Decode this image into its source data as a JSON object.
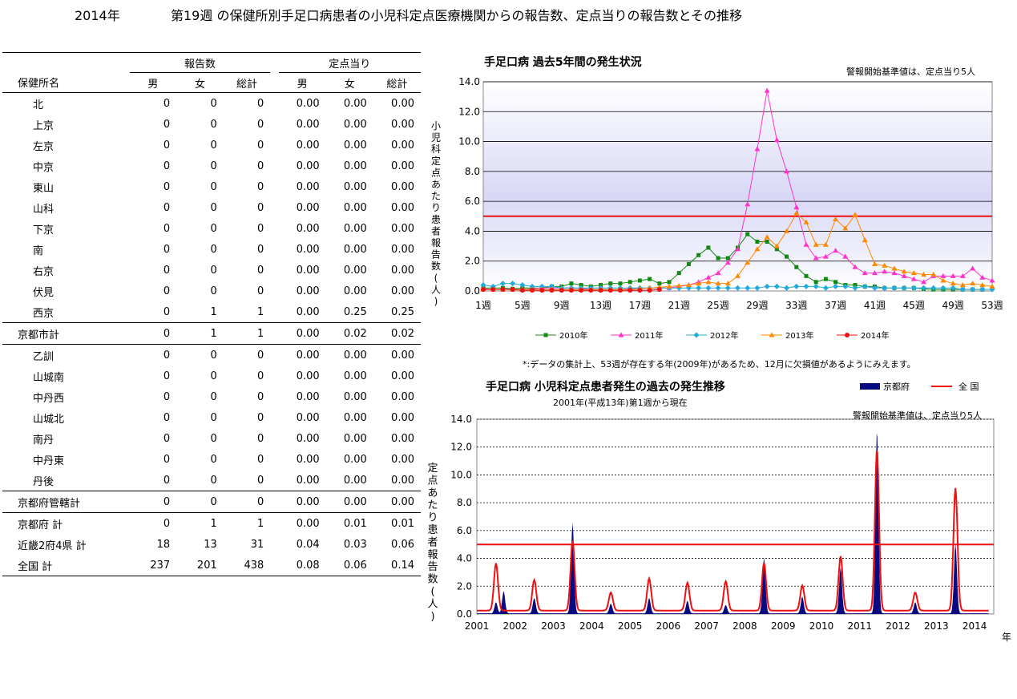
{
  "page": {
    "year": "2014年",
    "title": "第19週 の保健所別手足口病患者の小児科定点医療機関からの報告数、定点当りの報告数とその推移"
  },
  "table": {
    "group_reports": "報告数",
    "group_per_sentinel": "定点当り",
    "col_name": "保健所名",
    "cols": [
      "男",
      "女",
      "総計",
      "男",
      "女",
      "総計"
    ],
    "rows": [
      {
        "name": "北",
        "level": 1,
        "vals": [
          "0",
          "0",
          "0",
          "0.00",
          "0.00",
          "0.00"
        ]
      },
      {
        "name": "上京",
        "level": 1,
        "vals": [
          "0",
          "0",
          "0",
          "0.00",
          "0.00",
          "0.00"
        ]
      },
      {
        "name": "左京",
        "level": 1,
        "vals": [
          "0",
          "0",
          "0",
          "0.00",
          "0.00",
          "0.00"
        ]
      },
      {
        "name": "中京",
        "level": 1,
        "vals": [
          "0",
          "0",
          "0",
          "0.00",
          "0.00",
          "0.00"
        ]
      },
      {
        "name": "東山",
        "level": 1,
        "vals": [
          "0",
          "0",
          "0",
          "0.00",
          "0.00",
          "0.00"
        ]
      },
      {
        "name": "山科",
        "level": 1,
        "vals": [
          "0",
          "0",
          "0",
          "0.00",
          "0.00",
          "0.00"
        ]
      },
      {
        "name": "下京",
        "level": 1,
        "vals": [
          "0",
          "0",
          "0",
          "0.00",
          "0.00",
          "0.00"
        ]
      },
      {
        "name": "南",
        "level": 1,
        "vals": [
          "0",
          "0",
          "0",
          "0.00",
          "0.00",
          "0.00"
        ]
      },
      {
        "name": "右京",
        "level": 1,
        "vals": [
          "0",
          "0",
          "0",
          "0.00",
          "0.00",
          "0.00"
        ]
      },
      {
        "name": "伏見",
        "level": 1,
        "vals": [
          "0",
          "0",
          "0",
          "0.00",
          "0.00",
          "0.00"
        ]
      },
      {
        "name": "西京",
        "level": 1,
        "vals": [
          "0",
          "1",
          "1",
          "0.00",
          "0.25",
          "0.25"
        ]
      },
      {
        "name": "京都市計",
        "level": 0,
        "vals": [
          "0",
          "1",
          "1",
          "0.00",
          "0.02",
          "0.02"
        ]
      },
      {
        "name": "乙訓",
        "level": 1,
        "vals": [
          "0",
          "0",
          "0",
          "0.00",
          "0.00",
          "0.00"
        ]
      },
      {
        "name": "山城南",
        "level": 1,
        "vals": [
          "0",
          "0",
          "0",
          "0.00",
          "0.00",
          "0.00"
        ]
      },
      {
        "name": "中丹西",
        "level": 1,
        "vals": [
          "0",
          "0",
          "0",
          "0.00",
          "0.00",
          "0.00"
        ]
      },
      {
        "name": "山城北",
        "level": 1,
        "vals": [
          "0",
          "0",
          "0",
          "0.00",
          "0.00",
          "0.00"
        ]
      },
      {
        "name": "南丹",
        "level": 1,
        "vals": [
          "0",
          "0",
          "0",
          "0.00",
          "0.00",
          "0.00"
        ]
      },
      {
        "name": "中丹東",
        "level": 1,
        "vals": [
          "0",
          "0",
          "0",
          "0.00",
          "0.00",
          "0.00"
        ]
      },
      {
        "name": "丹後",
        "level": 1,
        "vals": [
          "0",
          "0",
          "0",
          "0.00",
          "0.00",
          "0.00"
        ]
      },
      {
        "name": "京都府管轄計",
        "level": 0,
        "vals": [
          "0",
          "0",
          "0",
          "0.00",
          "0.00",
          "0.00"
        ]
      },
      {
        "name": "京都府 計",
        "level": 0,
        "vals": [
          "0",
          "1",
          "1",
          "0.00",
          "0.01",
          "0.01"
        ]
      },
      {
        "name": "近畿2府4県 計",
        "level": 0,
        "vals": [
          "18",
          "13",
          "31",
          "0.04",
          "0.03",
          "0.06"
        ]
      },
      {
        "name": "全国 計",
        "level": 0,
        "vals": [
          "237",
          "201",
          "438",
          "0.08",
          "0.06",
          "0.14"
        ]
      }
    ]
  },
  "chart_data": [
    {
      "type": "line",
      "title": "手足口病 過去5年間の発生状況",
      "note": "警報開始基準値は、定点当り5人",
      "ylabel": "小児科定点あたり患者報告数(人)",
      "ylim": [
        0,
        14
      ],
      "yticks": [
        "0.0",
        "2.0",
        "4.0",
        "6.0",
        "8.0",
        "10.0",
        "12.0",
        "14.0"
      ],
      "xticks": [
        "1週",
        "5週",
        "9週",
        "13週",
        "17週",
        "21週",
        "25週",
        "29週",
        "33週",
        "37週",
        "41週",
        "45週",
        "49週",
        "53週"
      ],
      "threshold": 5,
      "footnote": "*:データの集計上、53週が存在する年(2009年)があるため、12月に欠損値があるようにみえます。",
      "series": [
        {
          "name": "2010年",
          "color": "#118811",
          "marker": "square",
          "values": [
            0.2,
            0.2,
            0.2,
            0.15,
            0.2,
            0.2,
            0.2,
            0.3,
            0.3,
            0.5,
            0.4,
            0.3,
            0.4,
            0.5,
            0.5,
            0.6,
            0.7,
            0.8,
            0.5,
            0.6,
            1.2,
            1.8,
            2.4,
            2.9,
            2.2,
            2.2,
            2.9,
            3.8,
            3.3,
            3.3,
            2.8,
            2.3,
            1.6,
            1.0,
            0.6,
            0.8,
            0.6,
            0.4,
            0.4,
            0.3,
            0.3,
            0.2,
            0.2,
            0.2,
            0.2,
            0.15,
            0.1,
            0.1,
            0.1,
            0.1,
            0.1,
            0.1
          ]
        },
        {
          "name": "2011年",
          "color": "#ff33cc",
          "marker": "triangle",
          "values": [
            0.15,
            0.1,
            0.1,
            0.1,
            0.1,
            0.15,
            0.2,
            0.2,
            0.2,
            0.2,
            0.2,
            0.1,
            0.1,
            0.1,
            0.1,
            0.15,
            0.2,
            0.2,
            0.2,
            0.2,
            0.3,
            0.4,
            0.6,
            0.9,
            1.2,
            1.9,
            2.8,
            5.8,
            9.5,
            13.4,
            10.1,
            8.0,
            5.6,
            3.1,
            2.2,
            2.3,
            2.7,
            2.3,
            1.6,
            1.2,
            1.2,
            1.3,
            1.2,
            1.0,
            0.8,
            0.6,
            1.0,
            1.0,
            1.0,
            1.0,
            1.5,
            0.9,
            0.7
          ]
        },
        {
          "name": "2012年",
          "color": "#22aadd",
          "marker": "diamond",
          "values": [
            0.4,
            0.3,
            0.5,
            0.5,
            0.4,
            0.3,
            0.3,
            0.3,
            0.2,
            0.2,
            0.2,
            0.2,
            0.2,
            0.2,
            0.2,
            0.2,
            0.2,
            0.2,
            0.2,
            0.2,
            0.2,
            0.2,
            0.2,
            0.2,
            0.2,
            0.2,
            0.2,
            0.2,
            0.2,
            0.3,
            0.3,
            0.2,
            0.3,
            0.3,
            0.3,
            0.2,
            0.3,
            0.3,
            0.2,
            0.3,
            0.2,
            0.2,
            0.2,
            0.2,
            0.2,
            0.2,
            0.2,
            0.2,
            0.2,
            0.1,
            0.1,
            0.1,
            0.1
          ]
        },
        {
          "name": "2013年",
          "color": "#ff8800",
          "marker": "triangle",
          "values": [
            0.1,
            0.1,
            0.1,
            0.1,
            0.1,
            0.1,
            0.1,
            0.1,
            0.1,
            0.1,
            0.1,
            0.1,
            0.1,
            0.1,
            0.1,
            0.1,
            0.15,
            0.2,
            0.25,
            0.3,
            0.35,
            0.4,
            0.5,
            0.6,
            0.5,
            0.5,
            1.0,
            1.9,
            2.8,
            3.6,
            3.0,
            4.0,
            5.2,
            4.6,
            3.1,
            3.1,
            4.8,
            4.2,
            5.1,
            3.4,
            1.8,
            1.7,
            1.5,
            1.3,
            1.2,
            1.1,
            1.1,
            0.7,
            0.5,
            0.4,
            0.5,
            0.4,
            0.3
          ]
        },
        {
          "name": "2014年",
          "color": "#ee1111",
          "marker": "circle",
          "values": [
            0.1,
            0.1,
            0.1,
            0.1,
            0.05,
            0.05,
            0.05,
            0.05,
            0.05,
            0.05,
            0.05,
            0.05,
            0.05,
            0.05,
            0.05,
            0.05,
            0.05,
            0.05,
            0.1
          ]
        }
      ]
    },
    {
      "type": "area",
      "title": "手足口病 小児科定点患者発生の過去の発生推移",
      "subtitle": "2001年(平成13年)第1週から現在",
      "note": "警報開始基準値は、定点当り5人",
      "ylabel": "定点あたり患者報告数(人)",
      "xlabel": "年",
      "ylim": [
        0,
        14
      ],
      "yticks": [
        "0.0",
        "2.0",
        "4.0",
        "6.0",
        "8.0",
        "10.0",
        "12.0",
        "14.0"
      ],
      "xticks": [
        "2001",
        "2002",
        "2003",
        "2004",
        "2005",
        "2006",
        "2007",
        "2008",
        "2009",
        "2010",
        "2011",
        "2012",
        "2013",
        "2014"
      ],
      "threshold": 5,
      "series": [
        {
          "name": "京都府",
          "color": "#0a0a80",
          "type": "area",
          "peaks": [
            [
              2001.5,
              0.8
            ],
            [
              2001.7,
              1.6
            ],
            [
              2002.5,
              1.1
            ],
            [
              2003.5,
              6.5
            ],
            [
              2004.5,
              0.7
            ],
            [
              2005.5,
              1.1
            ],
            [
              2006.5,
              0.9
            ],
            [
              2007.5,
              0.6
            ],
            [
              2008.5,
              4.0
            ],
            [
              2009.5,
              1.2
            ],
            [
              2010.5,
              3.3
            ],
            [
              2011.45,
              13.2
            ],
            [
              2012.45,
              0.8
            ],
            [
              2013.5,
              5.0
            ]
          ]
        },
        {
          "name": "全 国",
          "color": "#ee1111",
          "type": "line",
          "peaks": [
            [
              2001.5,
              3.4
            ],
            [
              2002.5,
              2.2
            ],
            [
              2003.5,
              5.0
            ],
            [
              2004.5,
              1.3
            ],
            [
              2005.5,
              2.3
            ],
            [
              2006.5,
              2.0
            ],
            [
              2007.5,
              2.1
            ],
            [
              2008.5,
              3.4
            ],
            [
              2009.5,
              1.8
            ],
            [
              2010.5,
              3.9
            ],
            [
              2011.45,
              11.6
            ],
            [
              2012.45,
              1.3
            ],
            [
              2013.5,
              8.8
            ]
          ]
        }
      ]
    }
  ]
}
